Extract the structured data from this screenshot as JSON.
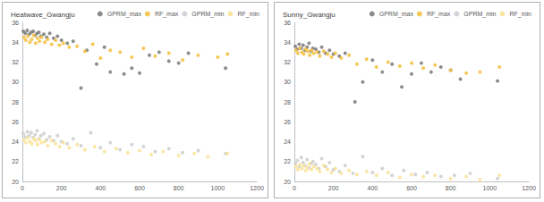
{
  "chart_data": [
    {
      "type": "scatter",
      "title": "Heatwave_Gwangju",
      "legend": "upper right",
      "grid": false,
      "xlim": [
        0,
        1200
      ],
      "xticks": [
        0,
        200,
        400,
        600,
        800,
        1000,
        1200
      ],
      "ylim": [
        20,
        36
      ],
      "yticks": [
        20,
        22,
        24,
        26,
        28,
        30,
        32,
        34,
        36
      ],
      "series": [
        {
          "name": "GPRM_max",
          "color": "#808080",
          "marker": "circle",
          "x": [
            5,
            15,
            25,
            35,
            45,
            55,
            65,
            75,
            85,
            95,
            110,
            125,
            140,
            160,
            180,
            200,
            230,
            260,
            300,
            330,
            380,
            420,
            450,
            520,
            560,
            600,
            650,
            700,
            750,
            800,
            850,
            1040
          ],
          "values": [
            35.1,
            34.9,
            35.2,
            34.8,
            35.0,
            35.1,
            34.7,
            34.9,
            35.0,
            34.6,
            34.8,
            34.5,
            34.9,
            34.4,
            34.6,
            34.2,
            33.9,
            34.1,
            29.4,
            33.2,
            31.8,
            33.5,
            31.0,
            30.8,
            31.4,
            30.9,
            32.7,
            33.0,
            32.1,
            31.9,
            32.9,
            31.4
          ]
        },
        {
          "name": "RF_max",
          "color": "#f5c242",
          "marker": "circle",
          "x": [
            8,
            18,
            28,
            38,
            48,
            58,
            68,
            78,
            88,
            98,
            115,
            130,
            150,
            170,
            190,
            210,
            240,
            280,
            320,
            360,
            400,
            450,
            500,
            560,
            620,
            680,
            750,
            820,
            900,
            1000,
            1050
          ],
          "values": [
            34.5,
            34.2,
            34.6,
            34.0,
            34.3,
            34.7,
            33.9,
            34.4,
            34.1,
            34.5,
            34.0,
            34.3,
            33.8,
            34.2,
            33.7,
            33.9,
            33.5,
            33.6,
            33.1,
            33.8,
            32.4,
            33.2,
            33.0,
            32.5,
            33.4,
            32.6,
            32.9,
            32.2,
            32.7,
            32.5,
            32.8
          ]
        },
        {
          "name": "GPRM_min",
          "color": "#cfcfcf",
          "marker": "circle",
          "x": [
            5,
            15,
            25,
            35,
            45,
            55,
            65,
            75,
            85,
            95,
            110,
            125,
            140,
            160,
            180,
            200,
            230,
            260,
            300,
            350,
            400,
            450,
            500,
            560,
            620,
            680,
            750,
            820,
            900,
            1040
          ],
          "values": [
            24.8,
            24.5,
            25.0,
            24.6,
            24.9,
            24.4,
            24.7,
            25.1,
            24.3,
            24.6,
            24.8,
            24.2,
            24.5,
            24.1,
            24.6,
            24.0,
            23.8,
            24.3,
            23.6,
            24.9,
            23.4,
            23.9,
            23.2,
            23.7,
            23.5,
            23.0,
            23.3,
            22.9,
            23.1,
            22.8
          ]
        },
        {
          "name": "RF_min",
          "color": "#fbe39a",
          "marker": "circle",
          "x": [
            8,
            18,
            28,
            38,
            48,
            58,
            68,
            78,
            88,
            98,
            115,
            130,
            150,
            170,
            190,
            210,
            240,
            280,
            320,
            370,
            420,
            480,
            540,
            600,
            660,
            720,
            800,
            880,
            950,
            1050
          ],
          "values": [
            24.2,
            23.9,
            24.4,
            24.0,
            23.8,
            24.3,
            24.1,
            23.7,
            24.2,
            23.9,
            24.0,
            23.6,
            24.1,
            23.8,
            23.5,
            23.9,
            23.4,
            23.7,
            23.2,
            23.5,
            23.0,
            23.3,
            22.9,
            23.1,
            22.7,
            23.0,
            22.6,
            22.8,
            22.5,
            22.8
          ]
        }
      ]
    },
    {
      "type": "scatter",
      "title": "Sunny_Gwangju",
      "legend": "upper right",
      "grid": false,
      "xlim": [
        0,
        1200
      ],
      "xticks": [
        0,
        200,
        400,
        600,
        800,
        1000,
        1200
      ],
      "ylim": [
        20,
        36
      ],
      "yticks": [
        20,
        22,
        24,
        26,
        28,
        30,
        32,
        34,
        36
      ],
      "series": [
        {
          "name": "GPRM_max",
          "color": "#808080",
          "marker": "circle",
          "x": [
            5,
            15,
            25,
            35,
            45,
            55,
            65,
            75,
            85,
            95,
            110,
            125,
            140,
            160,
            180,
            200,
            230,
            260,
            310,
            350,
            400,
            450,
            500,
            550,
            600,
            650,
            700,
            750,
            800,
            850,
            1040
          ],
          "values": [
            33.6,
            33.3,
            33.8,
            33.4,
            33.7,
            33.2,
            33.5,
            33.9,
            33.1,
            33.4,
            33.3,
            33.0,
            33.5,
            32.9,
            33.2,
            32.8,
            32.6,
            32.9,
            28.0,
            30.0,
            32.2,
            31.0,
            31.8,
            29.5,
            30.8,
            31.9,
            31.0,
            31.5,
            31.2,
            30.3,
            30.1
          ]
        },
        {
          "name": "RF_max",
          "color": "#f5c242",
          "marker": "circle",
          "x": [
            8,
            18,
            28,
            38,
            48,
            58,
            68,
            78,
            88,
            98,
            115,
            130,
            150,
            170,
            190,
            210,
            240,
            280,
            320,
            370,
            420,
            480,
            540,
            600,
            660,
            720,
            800,
            880,
            950,
            1050
          ],
          "values": [
            33.2,
            32.9,
            33.4,
            33.0,
            32.8,
            33.3,
            33.1,
            32.7,
            33.2,
            32.9,
            33.0,
            32.6,
            33.1,
            32.8,
            32.5,
            32.9,
            32.4,
            32.7,
            31.8,
            32.3,
            31.5,
            32.0,
            31.6,
            31.9,
            31.4,
            31.7,
            31.2,
            30.9,
            31.0,
            31.5
          ]
        },
        {
          "name": "GPRM_min",
          "color": "#cfcfcf",
          "marker": "circle",
          "x": [
            5,
            15,
            25,
            35,
            45,
            55,
            65,
            75,
            85,
            95,
            110,
            125,
            140,
            160,
            180,
            200,
            230,
            260,
            300,
            350,
            400,
            450,
            500,
            560,
            620,
            680,
            750,
            820,
            900,
            1040
          ],
          "values": [
            21.8,
            22.1,
            21.5,
            22.4,
            21.9,
            21.6,
            22.2,
            21.4,
            21.8,
            22.0,
            21.7,
            21.3,
            22.3,
            21.5,
            21.9,
            21.2,
            21.0,
            21.6,
            20.8,
            22.5,
            20.9,
            21.3,
            20.6,
            21.1,
            20.7,
            20.9,
            20.5,
            20.6,
            20.8,
            20.3
          ]
        },
        {
          "name": "RF_min",
          "color": "#fbe39a",
          "marker": "circle",
          "x": [
            8,
            18,
            28,
            38,
            48,
            58,
            68,
            78,
            88,
            98,
            115,
            130,
            150,
            170,
            190,
            210,
            240,
            280,
            320,
            370,
            420,
            480,
            540,
            600,
            660,
            720,
            800,
            880,
            950,
            1050
          ],
          "values": [
            21.5,
            21.2,
            21.7,
            21.3,
            21.6,
            21.1,
            21.4,
            21.8,
            21.2,
            21.5,
            21.3,
            21.0,
            21.6,
            21.2,
            20.9,
            21.3,
            20.8,
            21.1,
            20.7,
            21.0,
            20.6,
            20.9,
            20.4,
            20.7,
            20.5,
            20.6,
            20.3,
            20.5,
            20.2,
            20.6
          ]
        }
      ]
    }
  ]
}
